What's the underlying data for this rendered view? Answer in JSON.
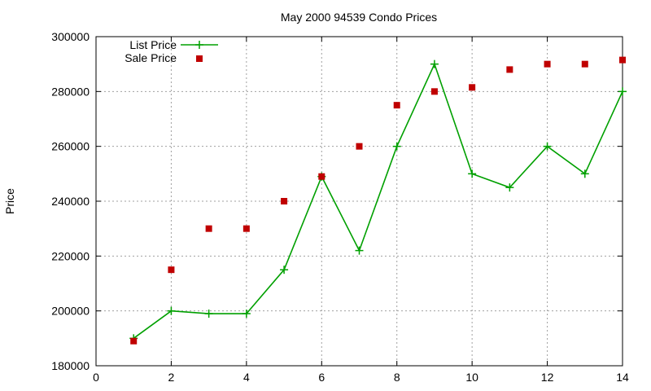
{
  "chart_data": {
    "type": "line",
    "title": "May 2000 94539 Condo Prices",
    "xlabel": "",
    "ylabel": "Price",
    "xlim": [
      0,
      14
    ],
    "ylim": [
      180000,
      300000
    ],
    "x_ticks": [
      "0",
      "2",
      "4",
      "6",
      "8",
      "10",
      "12",
      "14"
    ],
    "y_ticks": [
      "180000",
      "200000",
      "220000",
      "240000",
      "260000",
      "280000",
      "300000"
    ],
    "grid": true,
    "legend_position": "top-left",
    "series": [
      {
        "name": "List Price",
        "style": "line+points",
        "marker": "plus",
        "color": "#00a000",
        "x": [
          1,
          2,
          3,
          4,
          5,
          6,
          7,
          8,
          9,
          10,
          11,
          12,
          13,
          14
        ],
        "values": [
          190000,
          200000,
          199000,
          199000,
          215000,
          249000,
          222000,
          260000,
          290000,
          250000,
          245000,
          260000,
          250000,
          280000
        ]
      },
      {
        "name": "Sale Price",
        "style": "points",
        "marker": "square",
        "color": "#c00000",
        "x": [
          1,
          2,
          3,
          4,
          5,
          6,
          7,
          8,
          9,
          10,
          11,
          12,
          13,
          14
        ],
        "values": [
          189000,
          215000,
          230000,
          230000,
          240000,
          249000,
          260000,
          275000,
          280000,
          281500,
          288000,
          290000,
          290000,
          291500
        ]
      }
    ]
  }
}
